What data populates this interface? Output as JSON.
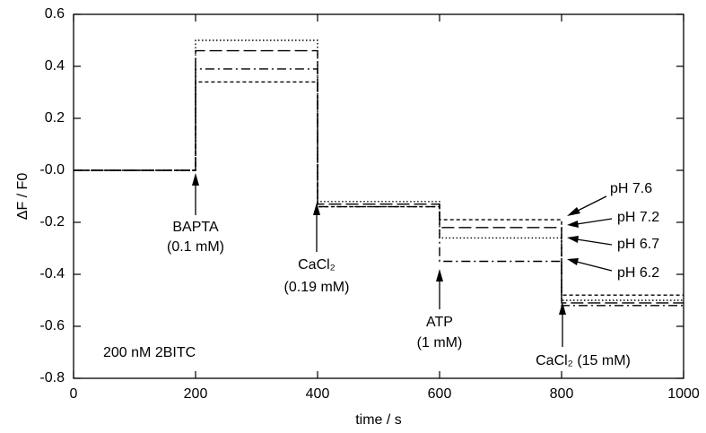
{
  "chart_data": {
    "type": "line",
    "x_label": "time / s",
    "y_label": "ΔF / F0",
    "x": [
      0,
      200,
      200,
      400,
      400,
      600,
      600,
      800,
      800,
      1000
    ],
    "series": [
      {
        "name": "pH 7.6",
        "color": "#000000",
        "style": "short-dash",
        "values": [
          0,
          0,
          0.34,
          0.34,
          -0.14,
          -0.14,
          -0.19,
          -0.19,
          -0.48,
          -0.48
        ]
      },
      {
        "name": "pH 7.2",
        "color": "#000000",
        "style": "long-dash",
        "values": [
          0,
          0,
          0.46,
          0.46,
          -0.13,
          -0.13,
          -0.22,
          -0.22,
          -0.51,
          -0.51
        ]
      },
      {
        "name": "pH 6.7",
        "color": "#000000",
        "style": "dotted",
        "values": [
          0,
          0,
          0.5,
          0.5,
          -0.12,
          -0.12,
          -0.26,
          -0.26,
          -0.5,
          -0.5
        ]
      },
      {
        "name": "pH 6.2",
        "color": "#000000",
        "style": "dash-dot",
        "values": [
          0,
          0,
          0.39,
          0.39,
          -0.14,
          -0.14,
          -0.35,
          -0.35,
          -0.52,
          -0.52
        ]
      }
    ],
    "xlim": [
      0,
      1000
    ],
    "ylim": [
      -0.8,
      0.6
    ],
    "xticks": [
      0,
      200,
      400,
      600,
      800,
      1000
    ],
    "yticks": [
      -0.8,
      -0.6,
      -0.4,
      -0.2,
      {
        "value": 0,
        "label": "-0.0"
      },
      0.2,
      0.4,
      0.6
    ],
    "annotations": [
      "BAPTA",
      "(0.1 mM)",
      "CaCl₂",
      "(0.19 mM)",
      "ATP",
      "(1 mM)",
      "CaCl₂ (15 mM)",
      "200 nM 2BITC"
    ]
  }
}
